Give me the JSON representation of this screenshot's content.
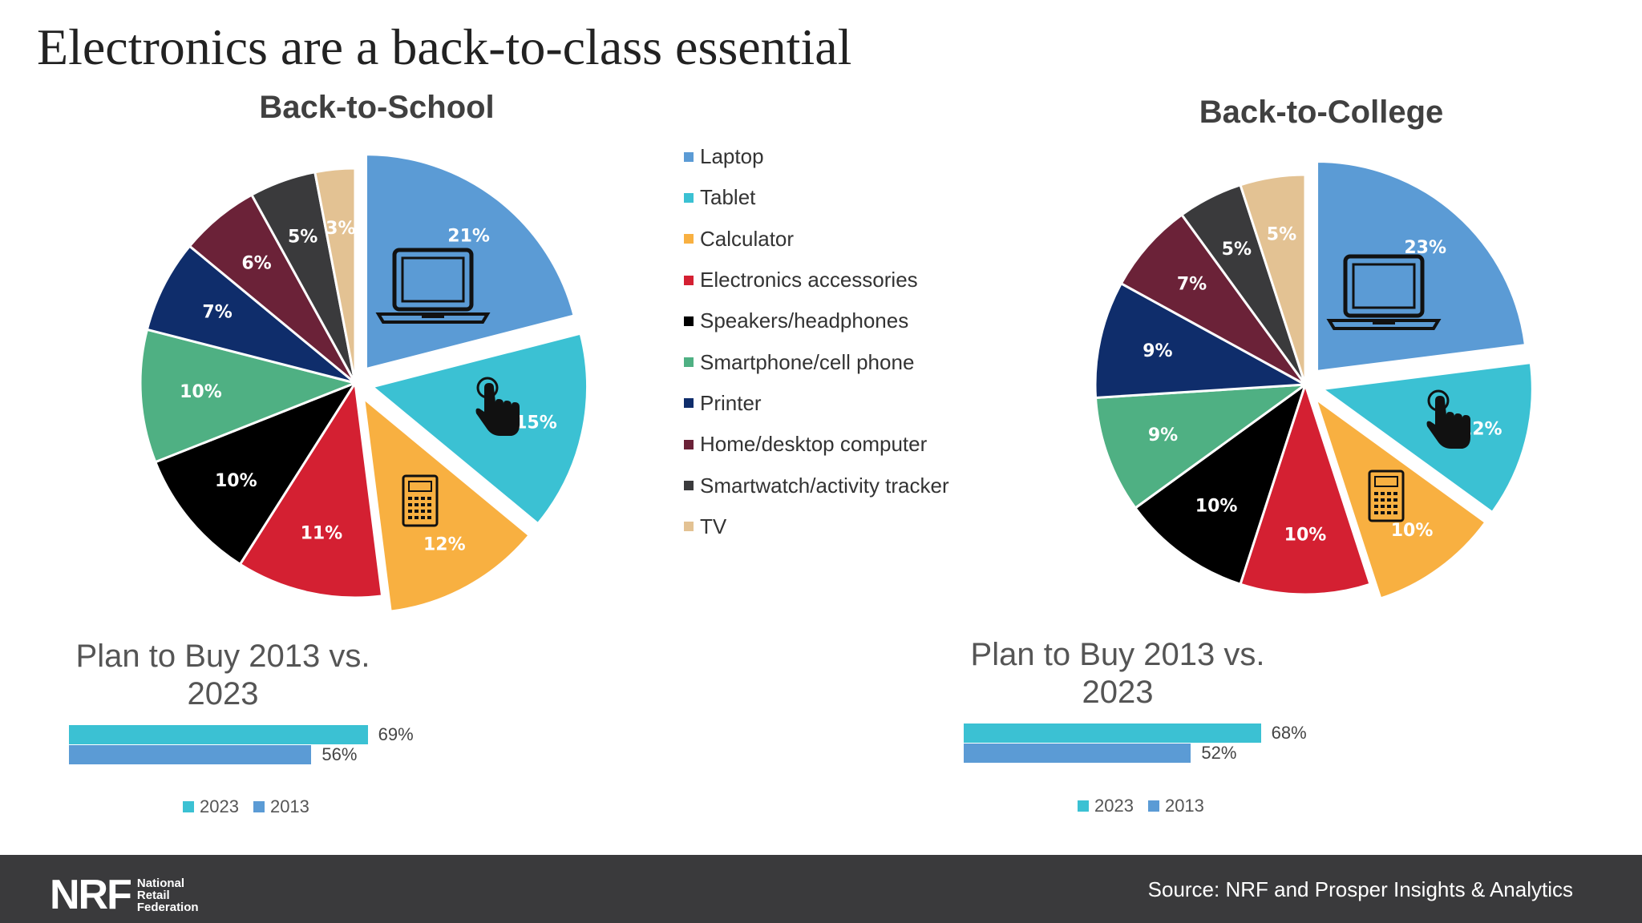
{
  "title": "Electronics are a back-to-class essential",
  "legend": [
    {
      "label": "Laptop",
      "color": "#5b9bd5"
    },
    {
      "label": "Tablet",
      "color": "#3bc1d3"
    },
    {
      "label": "Calculator",
      "color": "#f8b041"
    },
    {
      "label": "Electronics accessories",
      "color": "#d42032"
    },
    {
      "label": "Speakers/headphones",
      "color": "#000000"
    },
    {
      "label": "Smartphone/cell phone",
      "color": "#4fb083"
    },
    {
      "label": "Printer",
      "color": "#0f2d6b"
    },
    {
      "label": "Home/desktop computer",
      "color": "#6b2238"
    },
    {
      "label": "Smartwatch/activity tracker",
      "color": "#3a3a3c"
    },
    {
      "label": "TV",
      "color": "#e3c293"
    }
  ],
  "chart_data": [
    {
      "type": "pie",
      "title": "Back-to-School",
      "categories": [
        "Laptop",
        "Tablet",
        "Calculator",
        "Electronics accessories",
        "Speakers/headphones",
        "Smartphone/cell phone",
        "Printer",
        "Home/desktop computer",
        "Smartwatch/activity tracker",
        "TV"
      ],
      "values": [
        21,
        15,
        12,
        11,
        10,
        10,
        7,
        6,
        5,
        3
      ],
      "labels": [
        "21%",
        "15%",
        "12%",
        "11%",
        "10%",
        "10%",
        "7%",
        "6%",
        "5%",
        "3%"
      ],
      "icons": [
        "laptop-icon",
        "touch-hand-icon",
        "calculator-icon"
      ]
    },
    {
      "type": "pie",
      "title": "Back-to-College",
      "categories": [
        "Laptop",
        "Tablet",
        "Calculator",
        "Electronics accessories",
        "Speakers/headphones",
        "Smartphone/cell phone",
        "Printer",
        "Home/desktop computer",
        "Smartwatch/activity tracker",
        "TV"
      ],
      "values": [
        23,
        12,
        10,
        10,
        10,
        9,
        9,
        7,
        5,
        5
      ],
      "labels": [
        "23%",
        "12%",
        "10%",
        "10%",
        "10%",
        "9%",
        "9%",
        "7%",
        "5%",
        "5%"
      ],
      "icons": [
        "laptop-icon",
        "touch-hand-icon",
        "calculator-icon"
      ]
    },
    {
      "type": "bar",
      "title": "Plan to Buy 2013 vs. 2023",
      "series": [
        {
          "name": "2023",
          "values": [
            69
          ],
          "label": "69%",
          "color": "#3bc1d3"
        },
        {
          "name": "2013",
          "values": [
            56
          ],
          "label": "56%",
          "color": "#5b9bd5"
        }
      ]
    },
    {
      "type": "bar",
      "title": "Plan to Buy 2013 vs. 2023",
      "series": [
        {
          "name": "2023",
          "values": [
            68
          ],
          "label": "68%",
          "color": "#3bc1d3"
        },
        {
          "name": "2013",
          "values": [
            52
          ],
          "label": "52%",
          "color": "#5b9bd5"
        }
      ]
    }
  ],
  "footer": {
    "logo_mark": "NRF",
    "logo_words": [
      "National",
      "Retail",
      "Federation"
    ],
    "source": "Source: NRF and Prosper Insights & Analytics"
  }
}
